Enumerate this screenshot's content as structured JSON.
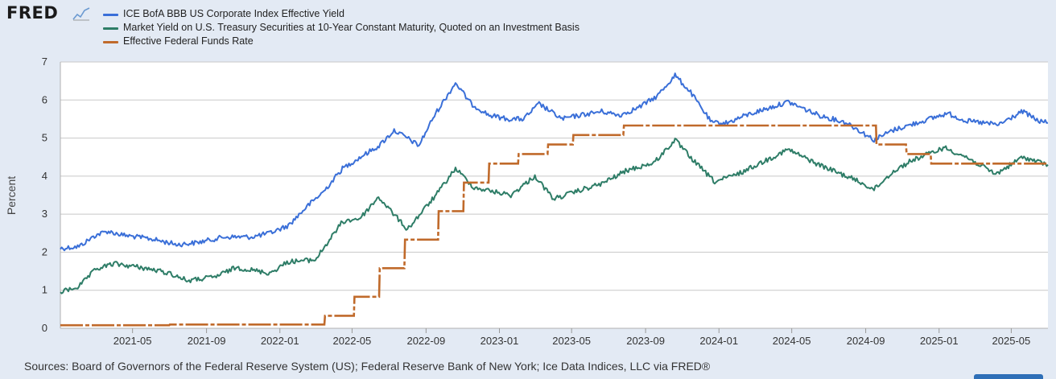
{
  "logo": {
    "text": "FRED",
    "icon": "line-chart-icon"
  },
  "source_text": "Sources: Board of Governors of the Federal Reserve System (US); Federal Reserve Bank of New York; Ice Data Indices, LLC via FRED®",
  "colors": {
    "background": "#e3eaf4",
    "plot_background": "#ffffff",
    "grid": "#c8c8c8",
    "baa": "#3a6fd8",
    "treasury": "#2e7d67",
    "fedfunds": "#c06a2b"
  },
  "chart_data": {
    "type": "line",
    "title": "",
    "xlabel": "",
    "ylabel": "Percent",
    "ylim": [
      0,
      7
    ],
    "yticks": [
      "0",
      "1",
      "2",
      "3",
      "4",
      "5",
      "6",
      "7"
    ],
    "xlim": [
      "2021-01-01",
      "2025-07-01"
    ],
    "xticks": [
      "2021-05",
      "2021-09",
      "2022-01",
      "2022-05",
      "2022-09",
      "2023-01",
      "2023-05",
      "2023-09",
      "2024-01",
      "2024-05",
      "2024-09",
      "2025-01",
      "2025-05"
    ],
    "grid": true,
    "legend": "top-left",
    "series": [
      {
        "name": "ICE BofA BBB US Corporate Index Effective Yield",
        "color": "#3a6fd8",
        "points": [
          [
            "2021-01-01",
            2.1
          ],
          [
            "2021-02-01",
            2.15
          ],
          [
            "2021-03-01",
            2.45
          ],
          [
            "2021-03-20",
            2.55
          ],
          [
            "2021-04-15",
            2.45
          ],
          [
            "2021-06-01",
            2.35
          ],
          [
            "2021-07-15",
            2.2
          ],
          [
            "2021-08-15",
            2.25
          ],
          [
            "2021-10-01",
            2.4
          ],
          [
            "2021-11-15",
            2.4
          ],
          [
            "2021-12-15",
            2.5
          ],
          [
            "2022-01-15",
            2.7
          ],
          [
            "2022-02-15",
            3.2
          ],
          [
            "2022-03-15",
            3.6
          ],
          [
            "2022-04-15",
            4.2
          ],
          [
            "2022-05-15",
            4.5
          ],
          [
            "2022-06-15",
            4.8
          ],
          [
            "2022-07-10",
            5.2
          ],
          [
            "2022-08-01",
            5.0
          ],
          [
            "2022-08-20",
            4.8
          ],
          [
            "2022-09-15",
            5.6
          ],
          [
            "2022-10-20",
            6.45
          ],
          [
            "2022-11-15",
            5.9
          ],
          [
            "2022-12-15",
            5.6
          ],
          [
            "2023-01-15",
            5.5
          ],
          [
            "2023-02-10",
            5.5
          ],
          [
            "2023-03-08",
            5.9
          ],
          [
            "2023-04-15",
            5.5
          ],
          [
            "2023-05-15",
            5.6
          ],
          [
            "2023-06-20",
            5.7
          ],
          [
            "2023-07-20",
            5.6
          ],
          [
            "2023-08-20",
            5.8
          ],
          [
            "2023-09-20",
            6.1
          ],
          [
            "2023-10-20",
            6.65
          ],
          [
            "2023-11-15",
            6.2
          ],
          [
            "2023-12-20",
            5.4
          ],
          [
            "2024-01-15",
            5.4
          ],
          [
            "2024-02-15",
            5.6
          ],
          [
            "2024-04-25",
            5.95
          ],
          [
            "2024-06-15",
            5.6
          ],
          [
            "2024-08-01",
            5.4
          ],
          [
            "2024-09-15",
            4.95
          ],
          [
            "2024-10-15",
            5.2
          ],
          [
            "2024-11-15",
            5.35
          ],
          [
            "2025-01-15",
            5.65
          ],
          [
            "2025-02-15",
            5.45
          ],
          [
            "2025-04-10",
            5.35
          ],
          [
            "2025-05-20",
            5.7
          ],
          [
            "2025-06-15",
            5.45
          ],
          [
            "2025-07-01",
            5.4
          ]
        ]
      },
      {
        "name": "Market Yield on U.S. Treasury Securities at 10-Year Constant Maturity, Quoted on an Investment Basis",
        "color": "#2e7d67",
        "points": [
          [
            "2021-01-01",
            0.95
          ],
          [
            "2021-02-01",
            1.1
          ],
          [
            "2021-03-01",
            1.55
          ],
          [
            "2021-03-31",
            1.7
          ],
          [
            "2021-05-15",
            1.6
          ],
          [
            "2021-07-01",
            1.45
          ],
          [
            "2021-08-01",
            1.25
          ],
          [
            "2021-09-15",
            1.35
          ],
          [
            "2021-10-20",
            1.6
          ],
          [
            "2021-12-15",
            1.45
          ],
          [
            "2022-01-15",
            1.75
          ],
          [
            "2022-03-01",
            1.8
          ],
          [
            "2022-04-15",
            2.8
          ],
          [
            "2022-05-15",
            2.9
          ],
          [
            "2022-06-14",
            3.45
          ],
          [
            "2022-07-15",
            2.9
          ],
          [
            "2022-08-01",
            2.6
          ],
          [
            "2022-09-20",
            3.55
          ],
          [
            "2022-10-20",
            4.2
          ],
          [
            "2022-11-20",
            3.7
          ],
          [
            "2022-12-20",
            3.6
          ],
          [
            "2023-01-20",
            3.5
          ],
          [
            "2023-03-01",
            4.0
          ],
          [
            "2023-04-01",
            3.4
          ],
          [
            "2023-05-20",
            3.65
          ],
          [
            "2023-06-20",
            3.8
          ],
          [
            "2023-08-01",
            4.15
          ],
          [
            "2023-09-15",
            4.35
          ],
          [
            "2023-10-20",
            4.95
          ],
          [
            "2023-11-20",
            4.4
          ],
          [
            "2023-12-25",
            3.85
          ],
          [
            "2024-02-01",
            4.05
          ],
          [
            "2024-04-25",
            4.7
          ],
          [
            "2024-06-15",
            4.3
          ],
          [
            "2024-08-15",
            3.9
          ],
          [
            "2024-09-15",
            3.65
          ],
          [
            "2024-10-15",
            4.1
          ],
          [
            "2024-11-15",
            4.4
          ],
          [
            "2025-01-10",
            4.75
          ],
          [
            "2025-02-15",
            4.5
          ],
          [
            "2025-04-05",
            4.05
          ],
          [
            "2025-05-20",
            4.5
          ],
          [
            "2025-07-01",
            4.3
          ]
        ]
      },
      {
        "name": "Effective Federal Funds Rate",
        "color": "#c06a2b",
        "dashed": true,
        "points": [
          [
            "2021-01-01",
            0.08
          ],
          [
            "2021-07-01",
            0.08
          ],
          [
            "2021-07-02",
            0.1
          ],
          [
            "2022-03-16",
            0.1
          ],
          [
            "2022-03-17",
            0.33
          ],
          [
            "2022-05-04",
            0.33
          ],
          [
            "2022-05-05",
            0.83
          ],
          [
            "2022-06-15",
            0.83
          ],
          [
            "2022-06-16",
            1.58
          ],
          [
            "2022-07-27",
            1.58
          ],
          [
            "2022-07-28",
            2.33
          ],
          [
            "2022-09-21",
            2.33
          ],
          [
            "2022-09-22",
            3.08
          ],
          [
            "2022-11-02",
            3.08
          ],
          [
            "2022-11-03",
            3.83
          ],
          [
            "2022-12-14",
            3.83
          ],
          [
            "2022-12-15",
            4.33
          ],
          [
            "2023-02-01",
            4.33
          ],
          [
            "2023-02-02",
            4.58
          ],
          [
            "2023-03-22",
            4.58
          ],
          [
            "2023-03-23",
            4.83
          ],
          [
            "2023-05-03",
            4.83
          ],
          [
            "2023-05-04",
            5.08
          ],
          [
            "2023-07-26",
            5.08
          ],
          [
            "2023-07-27",
            5.33
          ],
          [
            "2024-09-18",
            5.33
          ],
          [
            "2024-09-19",
            4.83
          ],
          [
            "2024-11-07",
            4.83
          ],
          [
            "2024-11-08",
            4.58
          ],
          [
            "2024-12-18",
            4.58
          ],
          [
            "2024-12-19",
            4.33
          ],
          [
            "2025-07-01",
            4.33
          ]
        ]
      }
    ]
  }
}
